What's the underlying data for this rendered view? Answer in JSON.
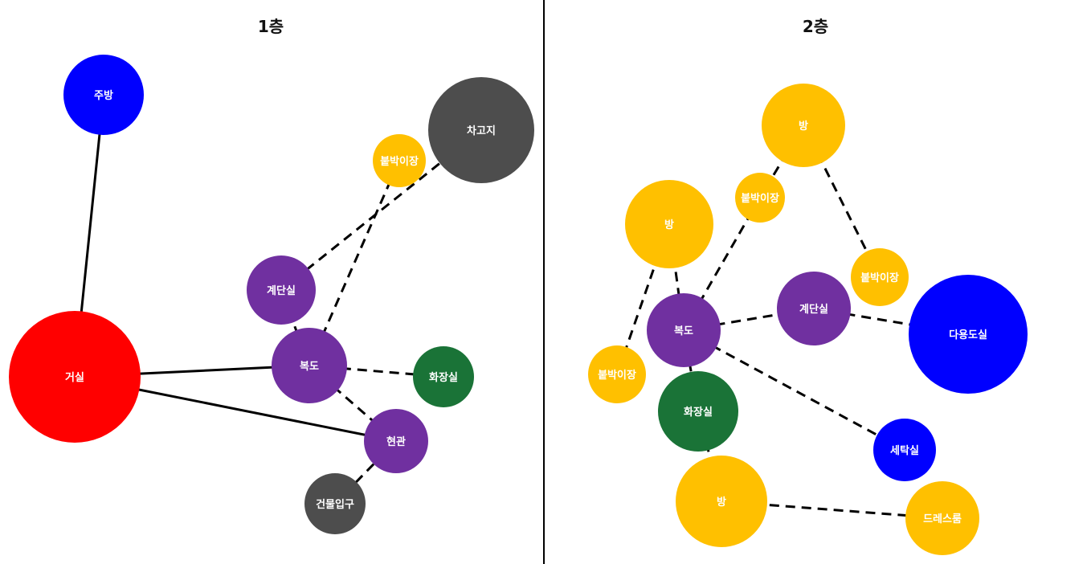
{
  "colors": {
    "purple": "#7030a0",
    "yellow": "#ffc000",
    "blue": "#0000ff",
    "red": "#ff0000",
    "green": "#1a7337",
    "gray": "#4d4d4d"
  },
  "floors": [
    {
      "title": "1층",
      "nodes": [
        {
          "id": "f1-kitchen",
          "label": "주방",
          "color": "blue"
        },
        {
          "id": "f1-garage",
          "label": "차고지",
          "color": "gray"
        },
        {
          "id": "f1-closet",
          "label": "붙박이장",
          "color": "yellow"
        },
        {
          "id": "f1-stairs",
          "label": "계단실",
          "color": "purple"
        },
        {
          "id": "f1-living",
          "label": "거실",
          "color": "red"
        },
        {
          "id": "f1-hall",
          "label": "복도",
          "color": "purple"
        },
        {
          "id": "f1-bath",
          "label": "화장실",
          "color": "green"
        },
        {
          "id": "f1-foyer",
          "label": "현관",
          "color": "purple"
        },
        {
          "id": "f1-entry",
          "label": "건물입구",
          "color": "gray"
        }
      ],
      "edges": [
        {
          "from": "f1-kitchen",
          "to": "f1-living",
          "style": "solid"
        },
        {
          "from": "f1-living",
          "to": "f1-hall",
          "style": "solid"
        },
        {
          "from": "f1-living",
          "to": "f1-foyer",
          "style": "solid"
        },
        {
          "from": "f1-stairs",
          "to": "f1-garage",
          "style": "dashed"
        },
        {
          "from": "f1-hall",
          "to": "f1-closet",
          "style": "dashed"
        },
        {
          "from": "f1-hall",
          "to": "f1-stairs",
          "style": "dashed"
        },
        {
          "from": "f1-hall",
          "to": "f1-bath",
          "style": "dashed"
        },
        {
          "from": "f1-hall",
          "to": "f1-foyer",
          "style": "dashed"
        },
        {
          "from": "f1-foyer",
          "to": "f1-entry",
          "style": "dashed"
        }
      ]
    },
    {
      "title": "2층",
      "nodes": [
        {
          "id": "f2-room-top",
          "label": "방",
          "color": "yellow"
        },
        {
          "id": "f2-closet-a",
          "label": "붙박이장",
          "color": "yellow"
        },
        {
          "id": "f2-room-left",
          "label": "방",
          "color": "yellow"
        },
        {
          "id": "f2-closet-b",
          "label": "붙박이장",
          "color": "yellow"
        },
        {
          "id": "f2-stairs",
          "label": "계단실",
          "color": "purple"
        },
        {
          "id": "f2-multi",
          "label": "다용도실",
          "color": "blue"
        },
        {
          "id": "f2-hall",
          "label": "복도",
          "color": "purple"
        },
        {
          "id": "f2-closet-c",
          "label": "붙박이장",
          "color": "yellow"
        },
        {
          "id": "f2-bath",
          "label": "화장실",
          "color": "green"
        },
        {
          "id": "f2-laundry",
          "label": "세탁실",
          "color": "blue"
        },
        {
          "id": "f2-room-bottom",
          "label": "방",
          "color": "yellow"
        },
        {
          "id": "f2-dress",
          "label": "드레스룸",
          "color": "yellow"
        }
      ],
      "edges": [
        {
          "from": "f2-room-top",
          "to": "f2-closet-a",
          "style": "dashed"
        },
        {
          "from": "f2-closet-a",
          "to": "f2-hall",
          "style": "dashed"
        },
        {
          "from": "f2-room-top",
          "to": "f2-closet-b",
          "style": "dashed"
        },
        {
          "from": "f2-room-left",
          "to": "f2-hall",
          "style": "dashed"
        },
        {
          "from": "f2-room-left",
          "to": "f2-closet-c",
          "style": "dashed"
        },
        {
          "from": "f2-hall",
          "to": "f2-stairs",
          "style": "dashed"
        },
        {
          "from": "f2-stairs",
          "to": "f2-multi",
          "style": "dashed"
        },
        {
          "from": "f2-hall",
          "to": "f2-bath",
          "style": "dashed"
        },
        {
          "from": "f2-hall",
          "to": "f2-laundry",
          "style": "dashed"
        },
        {
          "from": "f2-bath",
          "to": "f2-room-bottom",
          "style": "dashed"
        },
        {
          "from": "f2-room-bottom",
          "to": "f2-dress",
          "style": "dashed"
        }
      ]
    }
  ]
}
